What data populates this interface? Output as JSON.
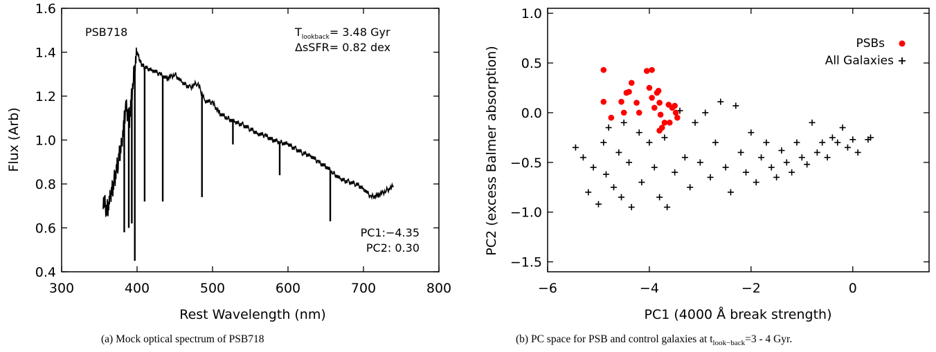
{
  "figure": {
    "caption_a": "(a) Mock optical spectrum of PSB718",
    "caption_b_prefix": "(b) PC space for PSB and control galaxies at t",
    "caption_b_sub": "look−back",
    "caption_b_suffix": "=3 - 4 Gyr."
  },
  "panel_a": {
    "label": "PSB718",
    "tlook_prefix": "T",
    "tlook_sub": "lookback",
    "tlook_value": "= 3.48 Gyr",
    "dssfr": "ΔsSFR= 0.82 dex",
    "pc1": "PC1:−4.35",
    "pc2": "PC2: 0.30"
  },
  "chart_data": [
    {
      "type": "line",
      "xlabel": "Rest Wavelength (nm)",
      "ylabel": "Flux (Arb)",
      "xlim": [
        300,
        800
      ],
      "ylim": [
        0.4,
        1.6
      ],
      "xticks": [
        300,
        400,
        500,
        600,
        700,
        800
      ],
      "yticks": [
        0.4,
        0.6,
        0.8,
        1.0,
        1.2,
        1.4,
        1.6
      ],
      "xtick_labels": [
        "300",
        "400",
        "500",
        "600",
        "700",
        "800"
      ],
      "ytick_labels": [
        "0.4",
        "0.6",
        "0.8",
        "1.0",
        "1.2",
        "1.4",
        "1.6"
      ],
      "series": [
        {
          "x": [
            355,
            360,
            365,
            370,
            375,
            380,
            385,
            390,
            395,
            400,
            405,
            410,
            420,
            430,
            440,
            450,
            460,
            470,
            480,
            490,
            500,
            510,
            520,
            530,
            540,
            550,
            560,
            570,
            580,
            590,
            600,
            610,
            620,
            630,
            640,
            650,
            660,
            670,
            680,
            690,
            700,
            710,
            720,
            730,
            740
          ],
          "y": [
            0.73,
            0.68,
            0.74,
            0.82,
            0.9,
            1.0,
            1.15,
            1.1,
            1.28,
            1.4,
            1.35,
            1.33,
            1.32,
            1.3,
            1.28,
            1.3,
            1.26,
            1.24,
            1.26,
            1.18,
            1.17,
            1.12,
            1.1,
            1.08,
            1.07,
            1.05,
            1.03,
            1.02,
            1.0,
            0.99,
            0.98,
            0.96,
            0.94,
            0.93,
            0.9,
            0.88,
            0.85,
            0.82,
            0.81,
            0.8,
            0.78,
            0.74,
            0.75,
            0.77,
            0.79
          ]
        }
      ],
      "absorption_lines": [
        {
          "x": 383,
          "y": 0.58
        },
        {
          "x": 389,
          "y": 0.6
        },
        {
          "x": 393,
          "y": 0.62
        },
        {
          "x": 397,
          "y": 0.45
        },
        {
          "x": 410,
          "y": 0.72
        },
        {
          "x": 434,
          "y": 0.72
        },
        {
          "x": 486,
          "y": 0.74
        },
        {
          "x": 527,
          "y": 0.98
        },
        {
          "x": 589,
          "y": 0.84
        },
        {
          "x": 656,
          "y": 0.63
        }
      ]
    },
    {
      "type": "scatter",
      "xlabel": "PC1 (4000 Å break strength)",
      "ylabel": "PC2 (excess Balmer absorption)",
      "xlim": [
        -6,
        1.5
      ],
      "ylim": [
        -1.6,
        1.05
      ],
      "xticks": [
        -6,
        -4,
        -2,
        0
      ],
      "yticks": [
        -1.5,
        -1.0,
        -0.5,
        0.0,
        0.5,
        1.0
      ],
      "xtick_labels": [
        "−6",
        "−4",
        "−2",
        "0"
      ],
      "ytick_labels": [
        "−1.5",
        "−1.0",
        "−0.5",
        "0.0",
        "0.5",
        "1.0"
      ],
      "legend": "top-right",
      "series": [
        {
          "name": "PSBs",
          "color": "#ff0000",
          "marker": "circle",
          "points": [
            [
              -4.9,
              0.43
            ],
            [
              -4.9,
              0.11
            ],
            [
              -4.75,
              -0.05
            ],
            [
              -4.55,
              0.11
            ],
            [
              -4.5,
              0.0
            ],
            [
              -4.45,
              0.2
            ],
            [
              -4.4,
              0.21
            ],
            [
              -4.35,
              0.3
            ],
            [
              -4.25,
              0.1
            ],
            [
              -4.2,
              0.0
            ],
            [
              -4.05,
              0.42
            ],
            [
              -4.0,
              0.25
            ],
            [
              -3.95,
              0.43
            ],
            [
              -3.95,
              0.15
            ],
            [
              -3.9,
              0.05
            ],
            [
              -3.85,
              0.2
            ],
            [
              -3.82,
              0.22
            ],
            [
              -3.8,
              0.1
            ],
            [
              -3.78,
              -0.02
            ],
            [
              -3.75,
              -0.15
            ],
            [
              -3.8,
              -0.18
            ],
            [
              -3.7,
              -0.1
            ],
            [
              -3.62,
              0.08
            ],
            [
              -3.6,
              -0.1
            ],
            [
              -3.55,
              0.05
            ],
            [
              -3.5,
              0.07
            ],
            [
              -3.48,
              0.0
            ],
            [
              -3.45,
              -0.05
            ]
          ]
        },
        {
          "name": "All Galaxies",
          "color": "#000000",
          "marker": "plus",
          "points": [
            [
              -5.45,
              -0.35
            ],
            [
              -5.3,
              -0.45
            ],
            [
              -5.2,
              -0.8
            ],
            [
              -5.1,
              -0.55
            ],
            [
              -5.0,
              -0.92
            ],
            [
              -4.9,
              -0.3
            ],
            [
              -4.85,
              -0.62
            ],
            [
              -4.8,
              -0.15
            ],
            [
              -4.7,
              -0.75
            ],
            [
              -4.6,
              -0.4
            ],
            [
              -4.55,
              -0.85
            ],
            [
              -4.5,
              -0.1
            ],
            [
              -4.4,
              -0.5
            ],
            [
              -4.35,
              -0.95
            ],
            [
              -4.2,
              -0.2
            ],
            [
              -4.15,
              -0.7
            ],
            [
              -4.0,
              -0.3
            ],
            [
              -3.9,
              -0.55
            ],
            [
              -3.8,
              -0.85
            ],
            [
              -3.7,
              -0.25
            ],
            [
              -3.65,
              -0.95
            ],
            [
              -3.5,
              -0.6
            ],
            [
              -3.4,
              0.02
            ],
            [
              -3.3,
              -0.45
            ],
            [
              -3.2,
              -0.75
            ],
            [
              -3.1,
              -0.1
            ],
            [
              -3.0,
              -0.5
            ],
            [
              -2.9,
              0.0
            ],
            [
              -2.8,
              -0.65
            ],
            [
              -2.7,
              -0.3
            ],
            [
              -2.6,
              0.11
            ],
            [
              -2.5,
              -0.55
            ],
            [
              -2.4,
              -0.8
            ],
            [
              -2.3,
              0.07
            ],
            [
              -2.2,
              -0.4
            ],
            [
              -2.1,
              -0.6
            ],
            [
              -2.0,
              -0.2
            ],
            [
              -1.9,
              -0.7
            ],
            [
              -1.8,
              -0.45
            ],
            [
              -1.7,
              -0.3
            ],
            [
              -1.6,
              -0.55
            ],
            [
              -1.5,
              -0.65
            ],
            [
              -1.4,
              -0.38
            ],
            [
              -1.3,
              -0.5
            ],
            [
              -1.2,
              -0.6
            ],
            [
              -1.1,
              -0.3
            ],
            [
              -1.0,
              -0.45
            ],
            [
              -0.9,
              -0.52
            ],
            [
              -0.8,
              -0.1
            ],
            [
              -0.7,
              -0.4
            ],
            [
              -0.6,
              -0.3
            ],
            [
              -0.5,
              -0.45
            ],
            [
              -0.4,
              -0.25
            ],
            [
              -0.3,
              -0.3
            ],
            [
              -0.2,
              -0.15
            ],
            [
              -0.1,
              -0.35
            ],
            [
              0.0,
              -0.27
            ],
            [
              0.1,
              -0.4
            ],
            [
              0.3,
              -0.27
            ],
            [
              0.35,
              -0.25
            ]
          ]
        }
      ]
    }
  ]
}
